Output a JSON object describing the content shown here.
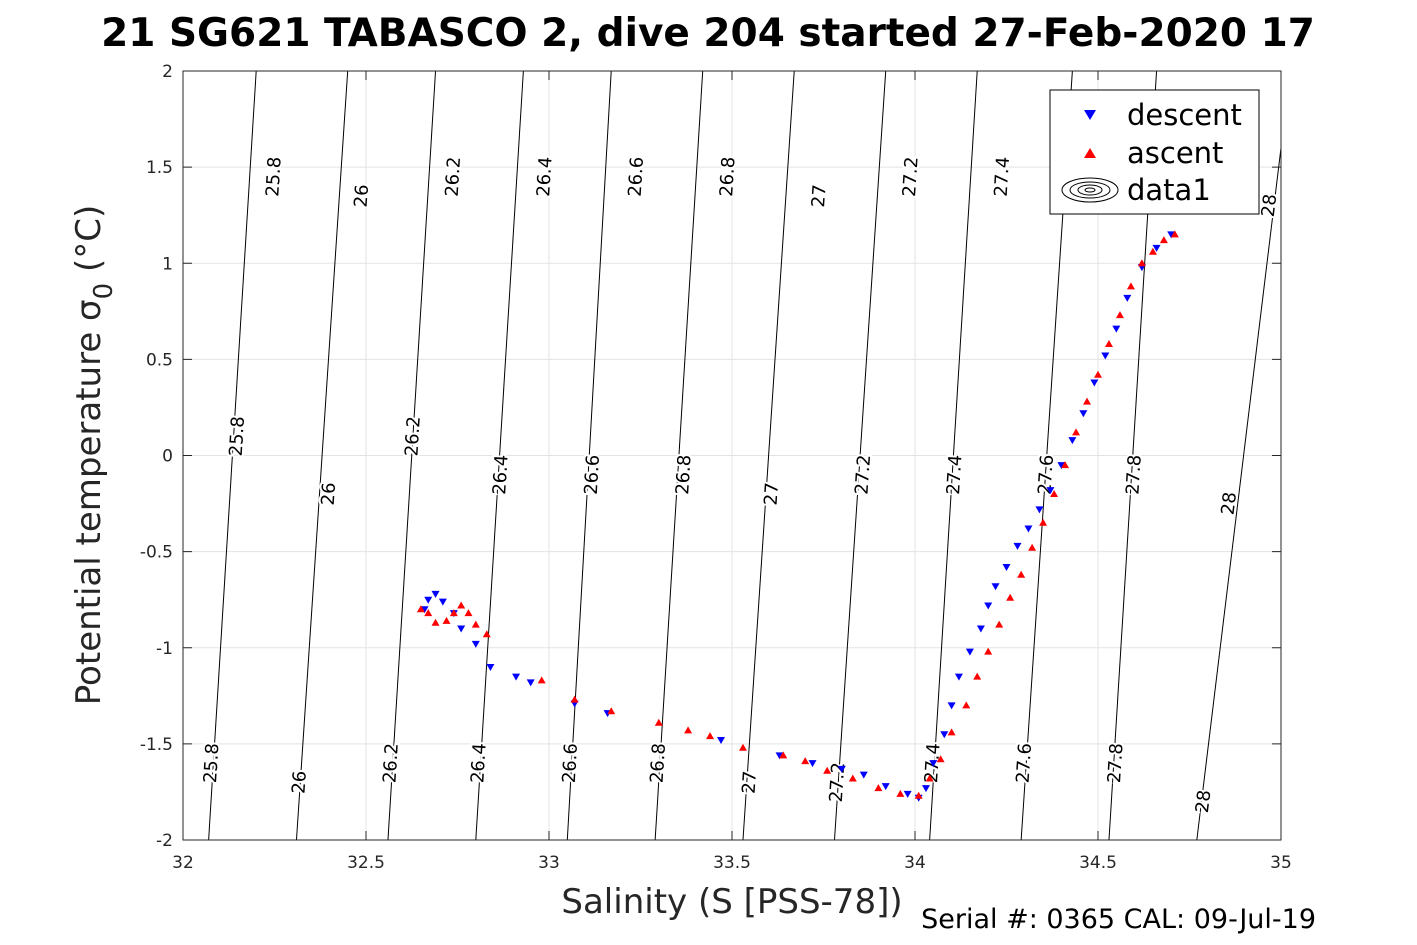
{
  "chart_data": {
    "type": "scatter",
    "title": "21 SG621 TABASCO 2, dive 204 started 27-Feb-2020 17",
    "xlabel": "Salinity (S [PSS-78])",
    "ylabel_main": "Potential temperature ",
    "ylabel_sigma": "σ",
    "ylabel_sub": "0",
    "ylabel_unit": " (°C)",
    "footer": "Serial #: 0365  CAL: 09-Jul-19",
    "xlim": [
      32,
      35
    ],
    "ylim": [
      -2,
      2
    ],
    "xticks": [
      32,
      32.5,
      33,
      33.5,
      34,
      34.5,
      35
    ],
    "xtick_labels": [
      "32",
      "32.5",
      "33",
      "33.5",
      "34",
      "34.5",
      "35"
    ],
    "yticks": [
      -2,
      -1.5,
      -1,
      -0.5,
      0,
      0.5,
      1,
      1.5,
      2
    ],
    "ytick_labels": [
      "-2",
      "-1.5",
      "-1",
      "-0.5",
      "0",
      "0.5",
      "1",
      "1.5",
      "2"
    ],
    "grid": true,
    "legend_position": "top-right",
    "legend": [
      {
        "label": "descent",
        "marker": "triangle-down",
        "color": "#0000ff"
      },
      {
        "label": "ascent",
        "marker": "triangle-up",
        "color": "#ff0000"
      },
      {
        "label": "data1",
        "marker": "contour",
        "color": "#000000"
      }
    ],
    "contours": [
      {
        "level": "25.8",
        "points": [
          [
            32.07,
            -2
          ],
          [
            32.2,
            2
          ]
        ],
        "label_pos": [
          [
            32.08,
            -1.6
          ],
          [
            32.15,
            0.1
          ],
          [
            32.25,
            1.45
          ]
        ]
      },
      {
        "level": "26",
        "points": [
          [
            32.31,
            -2
          ],
          [
            32.45,
            2
          ]
        ],
        "label_pos": [
          [
            32.32,
            -1.7
          ],
          [
            32.4,
            -0.2
          ],
          [
            32.49,
            1.35
          ]
        ]
      },
      {
        "level": "26.2",
        "points": [
          [
            32.56,
            -2
          ],
          [
            32.69,
            2
          ]
        ],
        "label_pos": [
          [
            32.57,
            -1.6
          ],
          [
            32.63,
            0.1
          ],
          [
            32.74,
            1.45
          ]
        ]
      },
      {
        "level": "26.4",
        "points": [
          [
            32.8,
            -2
          ],
          [
            32.93,
            2
          ]
        ],
        "label_pos": [
          [
            32.81,
            -1.6
          ],
          [
            32.87,
            -0.1
          ],
          [
            32.99,
            1.45
          ]
        ]
      },
      {
        "level": "26.6",
        "points": [
          [
            33.05,
            -2
          ],
          [
            33.17,
            2
          ]
        ],
        "label_pos": [
          [
            33.06,
            -1.6
          ],
          [
            33.12,
            -0.1
          ],
          [
            33.24,
            1.45
          ]
        ]
      },
      {
        "level": "26.8",
        "points": [
          [
            33.29,
            -2
          ],
          [
            33.42,
            2
          ]
        ],
        "label_pos": [
          [
            33.3,
            -1.6
          ],
          [
            33.37,
            -0.1
          ],
          [
            33.49,
            1.45
          ]
        ]
      },
      {
        "level": "27",
        "points": [
          [
            33.53,
            -2
          ],
          [
            33.67,
            2
          ]
        ],
        "label_pos": [
          [
            33.55,
            -1.7
          ],
          [
            33.61,
            -0.2
          ],
          [
            33.74,
            1.35
          ]
        ]
      },
      {
        "level": "27.2",
        "points": [
          [
            33.78,
            -2
          ],
          [
            33.92,
            2
          ]
        ],
        "label_pos": [
          [
            33.79,
            -1.7
          ],
          [
            33.86,
            -0.1
          ],
          [
            33.99,
            1.45
          ]
        ]
      },
      {
        "level": "27.4",
        "points": [
          [
            34.04,
            -2
          ],
          [
            34.17,
            2
          ]
        ],
        "label_pos": [
          [
            34.05,
            -1.6
          ],
          [
            34.11,
            -0.1
          ],
          [
            34.24,
            1.45
          ]
        ]
      },
      {
        "level": "27.6",
        "points": [
          [
            34.29,
            -2
          ],
          [
            34.43,
            2
          ]
        ],
        "label_pos": [
          [
            34.3,
            -1.6
          ],
          [
            34.36,
            -0.1
          ],
          [
            34.49,
            1.45
          ]
        ]
      },
      {
        "level": "27.8",
        "points": [
          [
            34.53,
            -2
          ],
          [
            34.66,
            2
          ]
        ],
        "label_pos": [
          [
            34.55,
            -1.6
          ],
          [
            34.6,
            -0.1
          ],
          [
            34.74,
            1.45
          ]
        ]
      },
      {
        "level": "28",
        "points": [
          [
            34.77,
            -2
          ],
          [
            35.0,
            1.6
          ]
        ],
        "label_pos": [
          [
            34.79,
            -1.8
          ],
          [
            34.86,
            -0.25
          ],
          [
            34.97,
            1.3
          ]
        ]
      }
    ],
    "series": [
      {
        "name": "descent",
        "marker": "triangle-down",
        "color": "#0000ff",
        "x": [
          32.66,
          32.67,
          32.69,
          32.71,
          32.74,
          32.76,
          32.8,
          32.84,
          32.91,
          32.95,
          33.07,
          33.16,
          33.47,
          33.63,
          33.72,
          33.8,
          33.86,
          33.92,
          33.98,
          34.01,
          34.03,
          34.05,
          34.08,
          34.1,
          34.12,
          34.15,
          34.18,
          34.2,
          34.22,
          34.25,
          34.28,
          34.31,
          34.34,
          34.37,
          34.4,
          34.43,
          34.46,
          34.49,
          34.52,
          34.55,
          34.58,
          34.62,
          34.66,
          34.7
        ],
        "y": [
          -0.8,
          -0.75,
          -0.72,
          -0.76,
          -0.82,
          -0.9,
          -0.98,
          -1.1,
          -1.15,
          -1.18,
          -1.29,
          -1.34,
          -1.48,
          -1.56,
          -1.6,
          -1.63,
          -1.66,
          -1.72,
          -1.76,
          -1.78,
          -1.73,
          -1.6,
          -1.45,
          -1.3,
          -1.15,
          -1.02,
          -0.9,
          -0.78,
          -0.68,
          -0.58,
          -0.47,
          -0.38,
          -0.28,
          -0.18,
          -0.05,
          0.08,
          0.22,
          0.38,
          0.52,
          0.66,
          0.82,
          0.98,
          1.08,
          1.15
        ]
      },
      {
        "name": "ascent",
        "marker": "triangle-up",
        "color": "#ff0000",
        "x": [
          32.65,
          32.67,
          32.69,
          32.72,
          32.74,
          32.76,
          32.78,
          32.8,
          32.83,
          32.98,
          33.07,
          33.17,
          33.3,
          33.38,
          33.44,
          33.53,
          33.64,
          33.7,
          33.76,
          33.83,
          33.9,
          33.96,
          34.01,
          34.04,
          34.07,
          34.1,
          34.14,
          34.17,
          34.2,
          34.23,
          34.26,
          34.29,
          34.32,
          34.35,
          34.38,
          34.41,
          34.44,
          34.47,
          34.5,
          34.53,
          34.56,
          34.59,
          34.62,
          34.65,
          34.68,
          34.71
        ],
        "y": [
          -0.8,
          -0.82,
          -0.87,
          -0.86,
          -0.82,
          -0.78,
          -0.82,
          -0.88,
          -0.93,
          -1.17,
          -1.27,
          -1.33,
          -1.39,
          -1.43,
          -1.46,
          -1.52,
          -1.56,
          -1.59,
          -1.64,
          -1.68,
          -1.73,
          -1.76,
          -1.77,
          -1.68,
          -1.58,
          -1.44,
          -1.3,
          -1.15,
          -1.02,
          -0.88,
          -0.74,
          -0.62,
          -0.48,
          -0.35,
          -0.2,
          -0.05,
          0.12,
          0.28,
          0.42,
          0.58,
          0.73,
          0.88,
          1.0,
          1.06,
          1.12,
          1.15
        ]
      }
    ]
  }
}
